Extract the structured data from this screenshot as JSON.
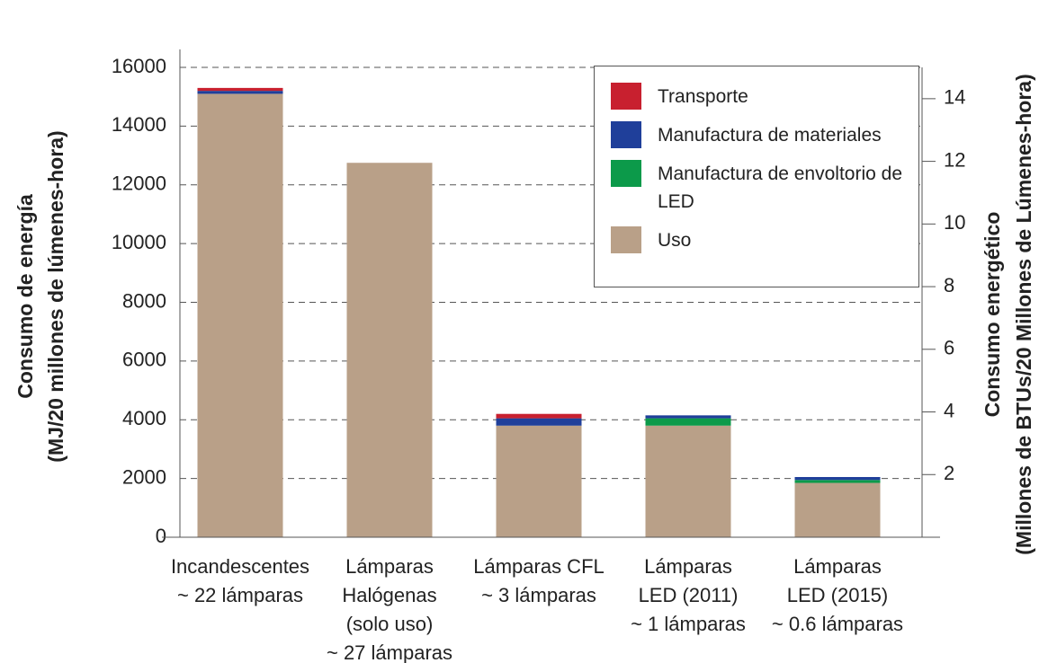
{
  "chart_data": {
    "type": "stacked_bar",
    "ylabel": [
      "Consumo de energía",
      "(MJ/20 millones de lúmenes-hora)"
    ],
    "y2label": [
      "Consumo energético",
      "(Millones de BTUs/20 Millones de Lúmenes-hora)"
    ],
    "categories": [
      [
        "Incandescentes",
        "~ 22 lámparas"
      ],
      [
        "Lámparas",
        "Halógenas",
        "(solo uso)",
        "~ 27 lámparas"
      ],
      [
        "Lámparas CFL",
        "~ 3 lámparas"
      ],
      [
        "Lámparas",
        "LED (2011)",
        "~ 1 lámparas"
      ],
      [
        "Lámparas",
        "LED (2015)",
        "~ 0.6 lámparas"
      ]
    ],
    "series": [
      {
        "name": "Uso",
        "color": "#b9a088",
        "values": [
          15100,
          12750,
          3800,
          3800,
          1850
        ]
      },
      {
        "name": "Manufactura de envoltorio de LED",
        "color": "#0c9a4a",
        "values": [
          null,
          null,
          null,
          250,
          100
        ]
      },
      {
        "name": "Manufactura de materiales",
        "color": "#1f3f9a",
        "values": [
          100,
          null,
          250,
          100,
          100
        ]
      },
      {
        "name": "Transporte",
        "color": "#c8202f",
        "values": [
          100,
          null,
          150,
          null,
          null
        ]
      }
    ],
    "legend_order": [
      3,
      2,
      1,
      0
    ],
    "legend_position": "upper right",
    "ylim": [
      0,
      16000
    ],
    "yticks": [
      0,
      2000,
      4000,
      6000,
      8000,
      10000,
      12000,
      14000,
      16000
    ],
    "y2lim": [
      0,
      15
    ],
    "y2ticks": [
      2,
      4,
      6,
      8,
      10,
      12,
      14
    ],
    "grid": true
  }
}
